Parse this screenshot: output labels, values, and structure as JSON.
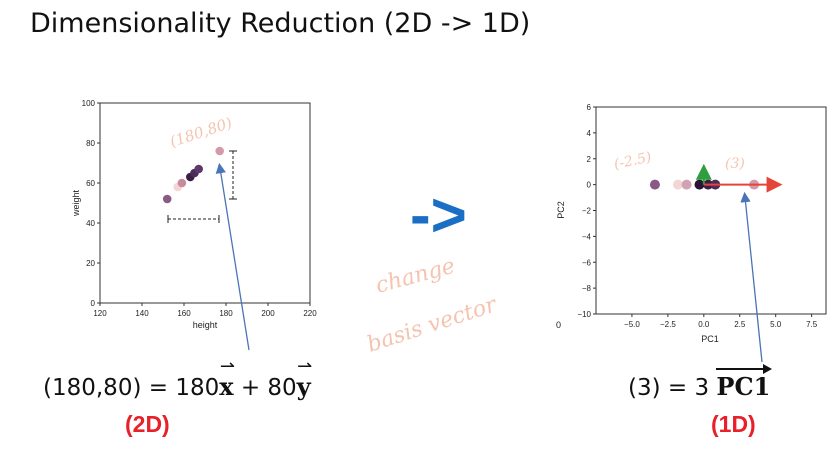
{
  "title": "Dimensionality Reduction (2D -> 1D)",
  "arrow_symbol": "->",
  "change_basis": {
    "line1": "change",
    "line2": "basis vector"
  },
  "left_equation": {
    "lhs": "(180,80) = 180",
    "x_var": "x",
    "mid": " + 80",
    "y_var": "y"
  },
  "left_tag": "(2D)",
  "right_equation": {
    "lhs": "(3) = 3 ",
    "pc": "PC1"
  },
  "right_tag": "(1D)",
  "colors": {
    "arrow_blue": "#1a6fc4",
    "tag_red": "#e8202a",
    "handwriting": "#f5c4b0",
    "pc1_arrow": "#e4453a",
    "pc2_arrow": "#2e9e3e"
  },
  "chart_data": [
    {
      "type": "scatter",
      "xlabel": "height",
      "ylabel": "weight",
      "xlim": [
        120,
        220
      ],
      "ylim": [
        0,
        100
      ],
      "xticks": [
        120,
        140,
        160,
        180,
        200,
        220
      ],
      "yticks": [
        0,
        20,
        40,
        60,
        80,
        100
      ],
      "annotation": "(180,80)",
      "points": [
        {
          "x": 152,
          "y": 52,
          "color": "#8a5a86"
        },
        {
          "x": 157,
          "y": 58,
          "color": "#f2d6d4"
        },
        {
          "x": 159,
          "y": 60,
          "color": "#c98a9c"
        },
        {
          "x": 163,
          "y": 63,
          "color": "#3a1e44"
        },
        {
          "x": 165,
          "y": 65,
          "color": "#4c2c5a"
        },
        {
          "x": 167,
          "y": 67,
          "color": "#5e3868"
        },
        {
          "x": 177,
          "y": 76,
          "color": "#d49aaa"
        }
      ]
    },
    {
      "type": "scatter",
      "xlabel": "PC1",
      "ylabel": "PC2",
      "xlim": [
        -7.5,
        8.5
      ],
      "ylim": [
        -10,
        6
      ],
      "xticks": [
        -5.0,
        -2.5,
        0.0,
        2.5,
        5.0,
        7.5
      ],
      "yticks": [
        -10,
        -8,
        -6,
        -4,
        -2,
        0,
        2,
        4,
        6
      ],
      "annotations": [
        "(-2.5)",
        "(3)"
      ],
      "corner_label": "0",
      "points": [
        {
          "x": -3.4,
          "y": 0,
          "color": "#8a5a86"
        },
        {
          "x": -1.8,
          "y": 0,
          "color": "#f2d6d4"
        },
        {
          "x": -1.2,
          "y": 0,
          "color": "#d3a2b2"
        },
        {
          "x": -0.3,
          "y": 0,
          "color": "#2a1436"
        },
        {
          "x": 0.3,
          "y": 0,
          "color": "#3a1e44"
        },
        {
          "x": 0.8,
          "y": 0,
          "color": "#4c2c5a"
        },
        {
          "x": 3.5,
          "y": 0,
          "color": "#d49aaa"
        }
      ]
    }
  ]
}
